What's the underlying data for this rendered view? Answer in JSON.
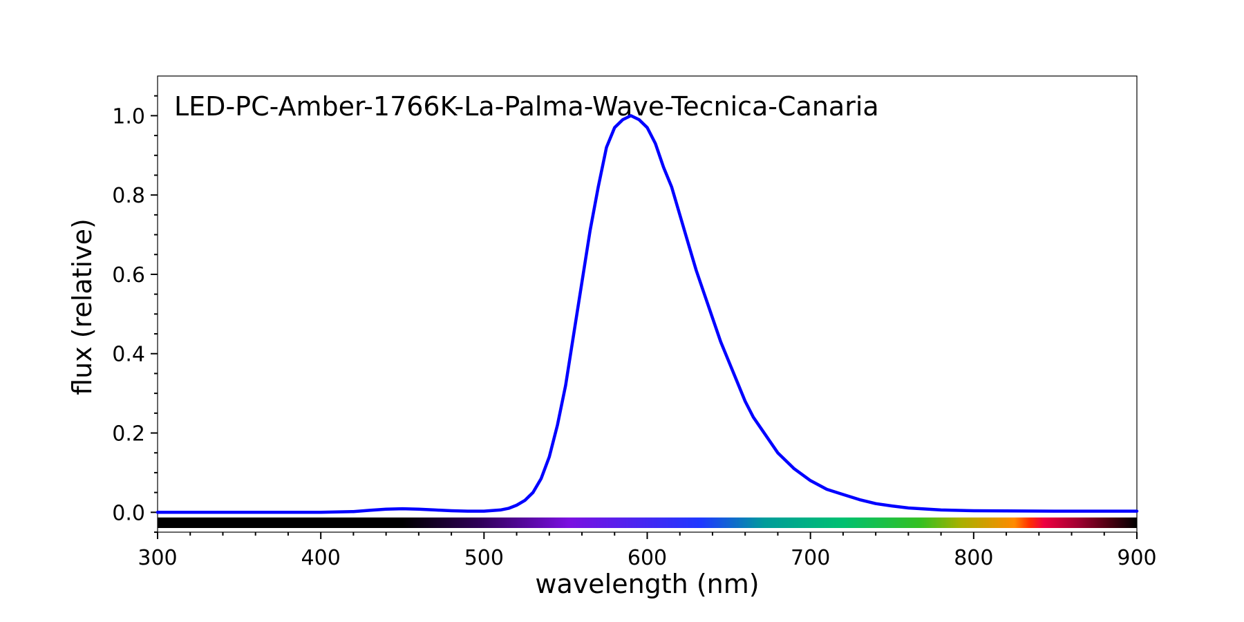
{
  "chart_data": {
    "type": "line",
    "title": "LED-PC-Amber-1766K-La-Palma-Wave-Tecnica-Canaria",
    "xlabel": "wavelength (nm)",
    "ylabel": "flux (relative)",
    "xlim": [
      300,
      900
    ],
    "ylim": [
      -0.05,
      1.1
    ],
    "x_ticks": [
      300,
      400,
      500,
      600,
      700,
      800,
      900
    ],
    "x_tick_labels": [
      "300",
      "400",
      "500",
      "600",
      "700",
      "800",
      "900"
    ],
    "y_ticks": [
      0.0,
      0.2,
      0.4,
      0.6,
      0.8,
      1.0
    ],
    "y_tick_labels": [
      "0.0",
      "0.2",
      "0.4",
      "0.6",
      "0.8",
      "1.0"
    ],
    "grid": false,
    "line_color": "#0000ff",
    "spectrum_bar": true,
    "series": [
      {
        "x": [
          300,
          350,
          400,
          420,
          430,
          440,
          450,
          460,
          470,
          480,
          490,
          500,
          510,
          515,
          520,
          525,
          530,
          535,
          540,
          545,
          550,
          555,
          560,
          565,
          570,
          575,
          580,
          585,
          590,
          595,
          600,
          605,
          610,
          615,
          620,
          625,
          630,
          635,
          640,
          645,
          650,
          655,
          660,
          665,
          670,
          675,
          680,
          690,
          700,
          710,
          720,
          730,
          740,
          750,
          760,
          780,
          800,
          850,
          900
        ],
        "y": [
          0.0,
          0.0,
          0.0,
          0.002,
          0.005,
          0.008,
          0.009,
          0.008,
          0.006,
          0.004,
          0.003,
          0.003,
          0.006,
          0.01,
          0.018,
          0.03,
          0.05,
          0.085,
          0.14,
          0.22,
          0.32,
          0.45,
          0.58,
          0.71,
          0.82,
          0.92,
          0.97,
          0.99,
          1.0,
          0.99,
          0.97,
          0.93,
          0.87,
          0.82,
          0.75,
          0.68,
          0.61,
          0.55,
          0.49,
          0.43,
          0.38,
          0.33,
          0.28,
          0.24,
          0.21,
          0.18,
          0.15,
          0.11,
          0.08,
          0.058,
          0.045,
          0.032,
          0.022,
          0.016,
          0.011,
          0.006,
          0.004,
          0.003,
          0.003
        ]
      }
    ]
  }
}
